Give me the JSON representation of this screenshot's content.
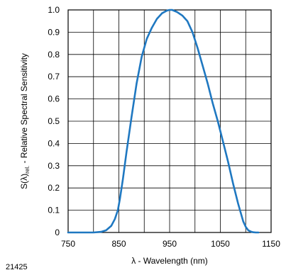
{
  "chart_data": {
    "type": "line",
    "xlabel": "λ - Wavelength (nm)",
    "ylabel": "S(λ)rel. - Relative Spectral Sensitivity",
    "ylabel_parts": {
      "main": "S(λ)",
      "sub": "rel.",
      "rest": " - Relative Spectral Sensitivity"
    },
    "xlim": [
      750,
      1150
    ],
    "ylim": [
      0,
      1.0
    ],
    "x_ticks": [
      750,
      850,
      950,
      1050,
      1150
    ],
    "x_tick_labels": [
      "750",
      "850",
      "950",
      "1050",
      "1150"
    ],
    "x_grid": [
      750,
      800,
      850,
      900,
      950,
      1000,
      1050,
      1100,
      1150
    ],
    "y_ticks": [
      0,
      0.1,
      0.2,
      0.3,
      0.4,
      0.5,
      0.6,
      0.7,
      0.8,
      0.9,
      1.0
    ],
    "y_tick_labels": [
      "0",
      "0.1",
      "0.2",
      "0.3",
      "0.4",
      "0.5",
      "0.6",
      "0.7",
      "0.8",
      "0.9",
      "1.0"
    ],
    "grid": true,
    "line_color": "#1f78c1",
    "series": [
      {
        "x": [
          750,
          800,
          815,
          825,
          835,
          842,
          848,
          852,
          858,
          865,
          875,
          885,
          895,
          905,
          915,
          925,
          935,
          945,
          950,
          955,
          965,
          975,
          985,
          995,
          1005,
          1015,
          1025,
          1035,
          1045,
          1055,
          1065,
          1075,
          1085,
          1095,
          1100,
          1105,
          1110,
          1115,
          1120,
          1125
        ],
        "y": [
          0,
          0,
          0.003,
          0.01,
          0.03,
          0.06,
          0.1,
          0.15,
          0.24,
          0.36,
          0.52,
          0.67,
          0.79,
          0.87,
          0.92,
          0.96,
          0.985,
          0.997,
          1.0,
          1.0,
          0.99,
          0.975,
          0.95,
          0.9,
          0.83,
          0.75,
          0.67,
          0.58,
          0.5,
          0.41,
          0.32,
          0.22,
          0.13,
          0.05,
          0.025,
          0.01,
          0.004,
          0.001,
          0,
          0
        ]
      }
    ]
  },
  "figure_id": "21425"
}
